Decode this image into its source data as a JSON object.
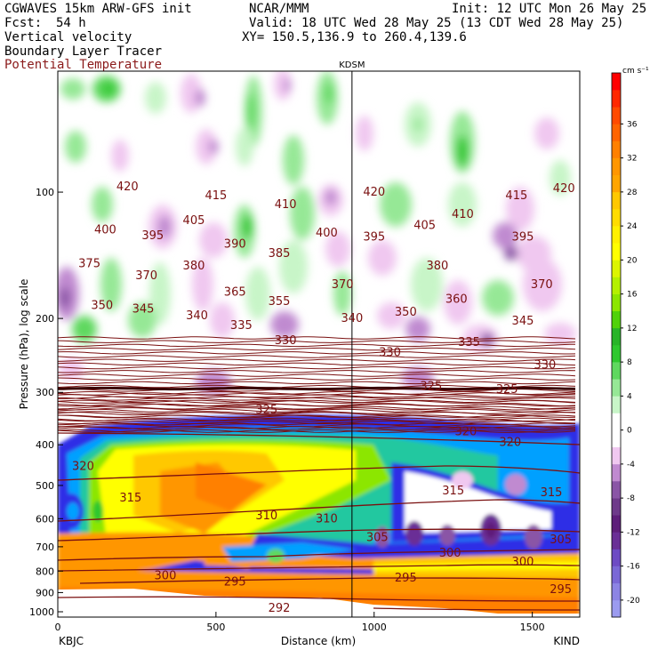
{
  "header": {
    "model": "CGWAVES 15km ARW-GFS init",
    "org": "NCAR/MMM",
    "init": "Init: 12 UTC Mon 26 May 25",
    "fcst_label": "Fcst:",
    "fcst_value": "54 h",
    "valid": "Valid: 18 UTC Wed 28 May 25 (13 CDT Wed 28 May 25)",
    "field1": "Vertical velocity",
    "xy": "XY= 150.5,136.9 to 260.4,139.6",
    "field2": "Boundary Layer Tracer",
    "field3": "Potential Temperature",
    "station_marker": "KDSM",
    "left_station": "KBJC",
    "right_station": "KIND"
  },
  "colors": {
    "theta": "#7a1010",
    "frame": "#000000"
  },
  "chart_data": {
    "type": "heatmap",
    "xlabel": "Distance (km)",
    "ylabel": "Pressure (hPa), log scale",
    "xlim": [
      0,
      1650
    ],
    "ylim": [
      1000,
      50
    ],
    "y_scale": "log",
    "x_ticks": [
      {
        "value": 0,
        "label": "0"
      },
      {
        "value": 500,
        "label": "500"
      },
      {
        "value": 1000,
        "label": "1000"
      },
      {
        "value": 1500,
        "label": "1500"
      }
    ],
    "y_ticks": [
      {
        "value": 100,
        "label": "100"
      },
      {
        "value": 200,
        "label": "200"
      },
      {
        "value": 300,
        "label": "300"
      },
      {
        "value": 400,
        "label": "400"
      },
      {
        "value": 500,
        "label": "500"
      },
      {
        "value": 600,
        "label": "600"
      },
      {
        "value": 700,
        "label": "700"
      },
      {
        "value": 800,
        "label": "800"
      },
      {
        "value": 900,
        "label": "900"
      },
      {
        "value": 1000,
        "label": "1000"
      }
    ],
    "station_marker_x": 930,
    "colorbar": {
      "units": "cm s⁻¹",
      "min": -22,
      "max": 42,
      "levels": [
        {
          "lo": -22,
          "hi": -20,
          "color": "#9b9bef"
        },
        {
          "lo": -20,
          "hi": -18,
          "color": "#8c84e4"
        },
        {
          "lo": -18,
          "hi": -16,
          "color": "#7a68d6"
        },
        {
          "lo": -16,
          "hi": -14,
          "color": "#6d4bc4"
        },
        {
          "lo": -14,
          "hi": -12,
          "color": "#6a2f96"
        },
        {
          "lo": -12,
          "hi": -10,
          "color": "#5e1f7a"
        },
        {
          "lo": -10,
          "hi": -8,
          "color": "#6e3a8a"
        },
        {
          "lo": -8,
          "hi": -6,
          "color": "#8a55a6"
        },
        {
          "lo": -6,
          "hi": -4,
          "color": "#c08ad0"
        },
        {
          "lo": -4,
          "hi": -2,
          "color": "#f0c8f0"
        },
        {
          "lo": -2,
          "hi": 2,
          "color": "#ffffff"
        },
        {
          "lo": 2,
          "hi": 4,
          "color": "#c8f5c8"
        },
        {
          "lo": 4,
          "hi": 6,
          "color": "#96e896"
        },
        {
          "lo": 6,
          "hi": 8,
          "color": "#5fd85f"
        },
        {
          "lo": 8,
          "hi": 10,
          "color": "#2ec82e"
        },
        {
          "lo": 10,
          "hi": 12,
          "color": "#28b428"
        },
        {
          "lo": 12,
          "hi": 14,
          "color": "#50d20a"
        },
        {
          "lo": 14,
          "hi": 16,
          "color": "#8ce600"
        },
        {
          "lo": 16,
          "hi": 18,
          "color": "#b4f000"
        },
        {
          "lo": 18,
          "hi": 20,
          "color": "#dcf500"
        },
        {
          "lo": 20,
          "hi": 22,
          "color": "#ffff00"
        },
        {
          "lo": 22,
          "hi": 24,
          "color": "#fff000"
        },
        {
          "lo": 24,
          "hi": 26,
          "color": "#ffdc00"
        },
        {
          "lo": 26,
          "hi": 28,
          "color": "#ffc800"
        },
        {
          "lo": 28,
          "hi": 30,
          "color": "#ffa500"
        },
        {
          "lo": 30,
          "hi": 32,
          "color": "#ff9600"
        },
        {
          "lo": 32,
          "hi": 34,
          "color": "#ff8000"
        },
        {
          "lo": 34,
          "hi": 36,
          "color": "#ff6400"
        },
        {
          "lo": 36,
          "hi": 38,
          "color": "#ff4a00"
        },
        {
          "lo": 38,
          "hi": 40,
          "color": "#ff2800"
        },
        {
          "lo": 40,
          "hi": 42,
          "color": "#ff0000"
        }
      ],
      "ticks": [
        {
          "value": 36,
          "label": "36"
        },
        {
          "value": 32,
          "label": "32"
        },
        {
          "value": 28,
          "label": "28"
        },
        {
          "value": 24,
          "label": "24"
        },
        {
          "value": 20,
          "label": "20"
        },
        {
          "value": 16,
          "label": "16"
        },
        {
          "value": 12,
          "label": "12"
        },
        {
          "value": 8,
          "label": "8"
        },
        {
          "value": 4,
          "label": "4"
        },
        {
          "value": 0,
          "label": "0"
        },
        {
          "value": -4,
          "label": "-4"
        },
        {
          "value": -8,
          "label": "-8"
        },
        {
          "value": -12,
          "label": "-12"
        },
        {
          "value": -16,
          "label": "-16"
        },
        {
          "value": -20,
          "label": "-20"
        }
      ]
    },
    "theta_labels": [
      {
        "text": "420",
        "x": 220,
        "p": 97
      },
      {
        "text": "415",
        "x": 500,
        "p": 102
      },
      {
        "text": "410",
        "x": 720,
        "p": 107
      },
      {
        "text": "420",
        "x": 1000,
        "p": 100
      },
      {
        "text": "415",
        "x": 1450,
        "p": 102
      },
      {
        "text": "420",
        "x": 1600,
        "p": 98
      },
      {
        "text": "400",
        "x": 150,
        "p": 123
      },
      {
        "text": "395",
        "x": 300,
        "p": 127
      },
      {
        "text": "405",
        "x": 430,
        "p": 117
      },
      {
        "text": "390",
        "x": 560,
        "p": 133
      },
      {
        "text": "385",
        "x": 700,
        "p": 140
      },
      {
        "text": "400",
        "x": 850,
        "p": 125
      },
      {
        "text": "395",
        "x": 1000,
        "p": 128
      },
      {
        "text": "405",
        "x": 1160,
        "p": 120
      },
      {
        "text": "410",
        "x": 1280,
        "p": 113
      },
      {
        "text": "395",
        "x": 1470,
        "p": 128
      },
      {
        "text": "375",
        "x": 100,
        "p": 148
      },
      {
        "text": "370",
        "x": 280,
        "p": 158
      },
      {
        "text": "380",
        "x": 430,
        "p": 150
      },
      {
        "text": "365",
        "x": 560,
        "p": 173
      },
      {
        "text": "370",
        "x": 900,
        "p": 166
      },
      {
        "text": "380",
        "x": 1200,
        "p": 150
      },
      {
        "text": "370",
        "x": 1530,
        "p": 166
      },
      {
        "text": "350",
        "x": 140,
        "p": 186
      },
      {
        "text": "345",
        "x": 270,
        "p": 190
      },
      {
        "text": "340",
        "x": 440,
        "p": 197
      },
      {
        "text": "355",
        "x": 700,
        "p": 182
      },
      {
        "text": "335",
        "x": 580,
        "p": 208
      },
      {
        "text": "340",
        "x": 930,
        "p": 200
      },
      {
        "text": "350",
        "x": 1100,
        "p": 193
      },
      {
        "text": "360",
        "x": 1260,
        "p": 180
      },
      {
        "text": "345",
        "x": 1470,
        "p": 203
      },
      {
        "text": "330",
        "x": 720,
        "p": 226
      },
      {
        "text": "330",
        "x": 1050,
        "p": 241
      },
      {
        "text": "335",
        "x": 1300,
        "p": 228
      },
      {
        "text": "330",
        "x": 1540,
        "p": 258
      },
      {
        "text": "325",
        "x": 660,
        "p": 330
      },
      {
        "text": "325",
        "x": 1180,
        "p": 290
      },
      {
        "text": "325",
        "x": 1420,
        "p": 295
      },
      {
        "text": "320",
        "x": 80,
        "p": 450
      },
      {
        "text": "320",
        "x": 1290,
        "p": 372
      },
      {
        "text": "320",
        "x": 1430,
        "p": 395
      },
      {
        "text": "315",
        "x": 230,
        "p": 535
      },
      {
        "text": "315",
        "x": 1250,
        "p": 515
      },
      {
        "text": "315",
        "x": 1560,
        "p": 520
      },
      {
        "text": "310",
        "x": 660,
        "p": 590
      },
      {
        "text": "310",
        "x": 850,
        "p": 600
      },
      {
        "text": "305",
        "x": 1010,
        "p": 665
      },
      {
        "text": "300",
        "x": 1240,
        "p": 725
      },
      {
        "text": "305",
        "x": 1590,
        "p": 673
      },
      {
        "text": "300",
        "x": 1470,
        "p": 760
      },
      {
        "text": "300",
        "x": 340,
        "p": 820
      },
      {
        "text": "295",
        "x": 560,
        "p": 850
      },
      {
        "text": "295",
        "x": 1100,
        "p": 830
      },
      {
        "text": "295",
        "x": 1590,
        "p": 885
      },
      {
        "text": "292",
        "x": 700,
        "p": 980
      }
    ]
  }
}
